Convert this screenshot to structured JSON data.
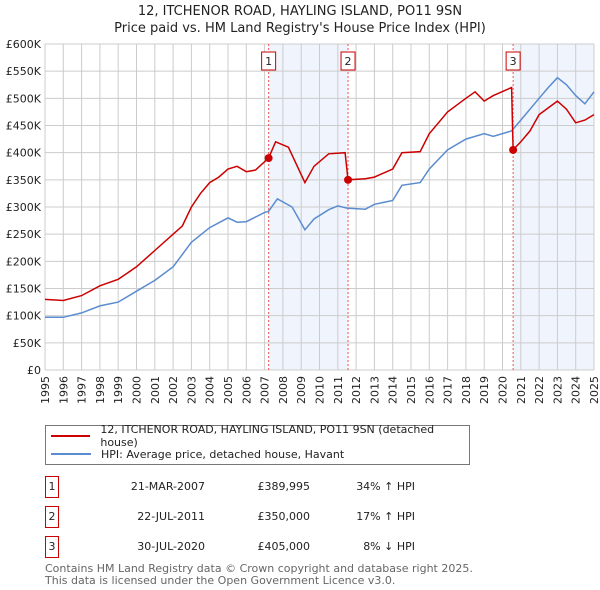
{
  "title": "12, ITCHENOR ROAD, HAYLING ISLAND, PO11 9SN",
  "subtitle": "Price paid vs. HM Land Registry's House Price Index (HPI)",
  "chart_data": {
    "type": "line",
    "title": "12, ITCHENOR ROAD, HAYLING ISLAND, PO11 9SN",
    "xlabel": "",
    "ylabel": "",
    "xlim": [
      1995,
      2025
    ],
    "ylim": [
      0,
      600000
    ],
    "y_ticks": [
      0,
      50000,
      100000,
      150000,
      200000,
      250000,
      300000,
      350000,
      400000,
      450000,
      500000,
      550000,
      600000
    ],
    "y_tick_labels": [
      "£0",
      "£50K",
      "£100K",
      "£150K",
      "£200K",
      "£250K",
      "£300K",
      "£350K",
      "£400K",
      "£450K",
      "£500K",
      "£550K",
      "£600K"
    ],
    "x_ticks": [
      1995,
      1996,
      1997,
      1998,
      1999,
      2000,
      2001,
      2002,
      2003,
      2004,
      2005,
      2006,
      2007,
      2008,
      2009,
      2010,
      2011,
      2012,
      2013,
      2014,
      2015,
      2016,
      2017,
      2018,
      2019,
      2020,
      2021,
      2022,
      2023,
      2024,
      2025
    ],
    "grid": true,
    "shaded_ranges": [
      [
        2007.22,
        2011.56
      ],
      [
        2020.58,
        2025
      ]
    ],
    "series": [
      {
        "name": "12, ITCHENOR ROAD, HAYLING ISLAND, PO11 9SN (detached house)",
        "color": "#cc0000",
        "x": [
          1995,
          1996,
          1997,
          1998,
          1999,
          2000,
          2001,
          2002,
          2002.5,
          2003,
          2003.5,
          2004,
          2004.5,
          2005,
          2005.5,
          2006,
          2006.5,
          2007.22,
          2007.6,
          2008.3,
          2009.2,
          2009.7,
          2010.5,
          2011.4,
          2011.56,
          2012.5,
          2013,
          2014,
          2014.5,
          2015.5,
          2016,
          2017,
          2018,
          2018.5,
          2019,
          2019.5,
          2020.5,
          2020.58,
          2021,
          2021.5,
          2022,
          2023,
          2023.5,
          2024,
          2024.5,
          2025
        ],
        "y": [
          130000,
          128000,
          137000,
          155000,
          167000,
          190000,
          220000,
          250000,
          265000,
          300000,
          325000,
          345000,
          355000,
          370000,
          375000,
          365000,
          368000,
          389995,
          420000,
          410000,
          345000,
          375000,
          398000,
          400000,
          350000,
          352000,
          355000,
          370000,
          400000,
          402000,
          435000,
          475000,
          500000,
          512000,
          495000,
          505000,
          520000,
          405000,
          420000,
          440000,
          470000,
          495000,
          480000,
          455000,
          460000,
          470000
        ]
      },
      {
        "name": "HPI: Average price, detached house, Havant",
        "color": "#5b8ccf",
        "x": [
          1995,
          1996,
          1997,
          1998,
          1999,
          2000,
          2001,
          2002,
          2003,
          2004,
          2005,
          2005.5,
          2006,
          2007,
          2007.22,
          2007.7,
          2008.5,
          2009.2,
          2009.7,
          2010.5,
          2011,
          2011.5,
          2012.5,
          2013,
          2014,
          2014.5,
          2015.5,
          2016,
          2017,
          2018,
          2019,
          2019.5,
          2020.5,
          2021,
          2022,
          2022.5,
          2023,
          2023.5,
          2024,
          2024.5,
          2025
        ],
        "y": [
          97000,
          97000,
          105000,
          118000,
          125000,
          145000,
          165000,
          190000,
          235000,
          262000,
          280000,
          272000,
          273000,
          290000,
          292000,
          315000,
          300000,
          258000,
          278000,
          295000,
          302000,
          298000,
          296000,
          305000,
          312000,
          340000,
          345000,
          370000,
          405000,
          425000,
          435000,
          430000,
          440000,
          460000,
          500000,
          520000,
          538000,
          525000,
          505000,
          490000,
          512000
        ]
      }
    ],
    "sales": [
      {
        "label": "1",
        "x": 2007.22,
        "y": 389995
      },
      {
        "label": "2",
        "x": 2011.56,
        "y": 350000
      },
      {
        "label": "3",
        "x": 2020.58,
        "y": 405000
      }
    ]
  },
  "legend": {
    "property": "12, ITCHENOR ROAD, HAYLING ISLAND, PO11 9SN (detached house)",
    "hpi": "HPI: Average price, detached house, Havant"
  },
  "colors": {
    "property": "#cc0000",
    "hpi": "#5b8ccf",
    "shade": "#f0f4fc"
  },
  "transactions": [
    {
      "num": "1",
      "date": "21-MAR-2007",
      "price": "£389,995",
      "hpi": "34% ↑ HPI"
    },
    {
      "num": "2",
      "date": "22-JUL-2011",
      "price": "£350,000",
      "hpi": "17% ↑ HPI"
    },
    {
      "num": "3",
      "date": "30-JUL-2020",
      "price": "£405,000",
      "hpi": "8% ↓ HPI"
    }
  ],
  "footer": {
    "line1": "Contains HM Land Registry data © Crown copyright and database right 2025.",
    "line2": "This data is licensed under the Open Government Licence v3.0."
  }
}
